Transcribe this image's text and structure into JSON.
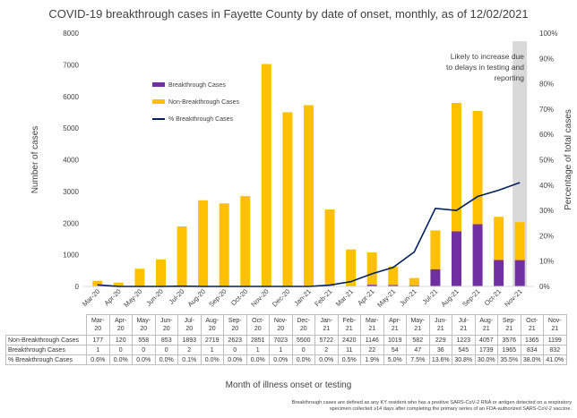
{
  "title": "COVID-19 breakthrough cases in Fayette County by date of onset, monthly, as of 12/02/2021",
  "chart_data": {
    "type": "bar",
    "stacked": true,
    "categories": [
      "Mar-20",
      "Apr-20",
      "May-20",
      "Jun-20",
      "Jul-20",
      "Aug-20",
      "Sep-20",
      "Oct-20",
      "Nov-20",
      "Dec-20",
      "Jan-21",
      "Feb-21",
      "Mar-21",
      "Apr-21",
      "May-21",
      "Jun-21",
      "Jul-21",
      "Aug-21",
      "Sep-21",
      "Oct-21",
      "Nov-21"
    ],
    "table_headers": [
      [
        "Mar-",
        "20"
      ],
      [
        "Apr-",
        "20"
      ],
      [
        "May-",
        "20"
      ],
      [
        "Jun-",
        "20"
      ],
      [
        "Jul-",
        "20"
      ],
      [
        "Aug-",
        "20"
      ],
      [
        "Sep-",
        "20"
      ],
      [
        "Oct-",
        "20"
      ],
      [
        "Nov-",
        "20"
      ],
      [
        "Dec-",
        "20"
      ],
      [
        "Jan-",
        "21"
      ],
      [
        "Feb-",
        "21"
      ],
      [
        "Mar-",
        "21"
      ],
      [
        "Apr-",
        "21"
      ],
      [
        "May-",
        "21"
      ],
      [
        "Jun-",
        "21"
      ],
      [
        "Jul-",
        "21"
      ],
      [
        "Aug-",
        "21"
      ],
      [
        "Sep-",
        "21"
      ],
      [
        "Oct-",
        "21"
      ],
      [
        "Nov-",
        "21"
      ]
    ],
    "series": [
      {
        "name": "Breakthrough Cases",
        "color": "#7030a0",
        "values": [
          1,
          0,
          0,
          0,
          2,
          1,
          0,
          1,
          1,
          0,
          2,
          11,
          22,
          54,
          47,
          36,
          545,
          1739,
          1965,
          834,
          832
        ]
      },
      {
        "name": "Non-Breakthrough Cases",
        "color": "#ffc000",
        "values": [
          177,
          120,
          558,
          853,
          1893,
          2719,
          2623,
          2851,
          7023,
          5500,
          5722,
          2420,
          1146,
          1019,
          582,
          229,
          1223,
          4057,
          3576,
          1365,
          1199
        ]
      },
      {
        "name": "% Breakthrough Cases",
        "color": "#002060",
        "axis": "right",
        "values": [
          0.6,
          0.0,
          0.0,
          0.0,
          0.1,
          0.0,
          0.0,
          0.0,
          0.0,
          0.0,
          0.0,
          0.5,
          1.9,
          5.0,
          7.5,
          13.6,
          30.8,
          30.0,
          35.5,
          38.0,
          41.0
        ]
      }
    ],
    "table_rows": [
      {
        "label": "Non-Breakthrough Cases",
        "values": [
          "177",
          "120",
          "558",
          "853",
          "1893",
          "2719",
          "2623",
          "2851",
          "7023",
          "5500",
          "5722",
          "2420",
          "1146",
          "1019",
          "582",
          "229",
          "1223",
          "4057",
          "3576",
          "1365",
          "1199"
        ]
      },
      {
        "label": "Breakthrough Cases",
        "values": [
          "1",
          "0",
          "0",
          "0",
          "2",
          "1",
          "0",
          "1",
          "1",
          "0",
          "2",
          "11",
          "22",
          "54",
          "47",
          "36",
          "545",
          "1739",
          "1965",
          "834",
          "832"
        ]
      },
      {
        "label": "% Breakthrough Cases",
        "values": [
          "0.6%",
          "0.0%",
          "0.0%",
          "0.0%",
          "0.1%",
          "0.0%",
          "0.0%",
          "0.0%",
          "0.0%",
          "0.0%",
          "0.0%",
          "0.5%",
          "1.9%",
          "5.0%",
          "7.5%",
          "13.6%",
          "30.8%",
          "30.0%",
          "35.5%",
          "38.0%",
          "41.0%"
        ]
      }
    ],
    "ylabel": "Number of cases",
    "y2label": "Percentage of total cases",
    "xlabel": "Month of illness onset or testing",
    "ylim": [
      0,
      8000
    ],
    "y2lim": [
      0,
      100
    ],
    "y_ticks": [
      "0",
      "1000",
      "2000",
      "3000",
      "4000",
      "5000",
      "6000",
      "7000",
      "8000"
    ],
    "y2_ticks": [
      "0%",
      "10%",
      "20%",
      "30%",
      "40%",
      "50%",
      "60%",
      "70%",
      "80%",
      "90%",
      "100%"
    ],
    "annotation": [
      "Likely to increase due",
      "to delays in testing and",
      "reporting"
    ],
    "shaded_category": "Nov-21",
    "legend_position": "upper-left",
    "grid": false
  },
  "footnote": [
    "Breakthrough cases are defined as any KY resident who has a positive SARS-CoV-2 RNA or antigen detected on a respiratory",
    "specimen collected ≥14 days after completing the primary series of an FDA-authorized SARS-CoV-2 vaccine."
  ],
  "colors": {
    "shade": "#d9d9d9",
    "axis_text": "#404040"
  }
}
